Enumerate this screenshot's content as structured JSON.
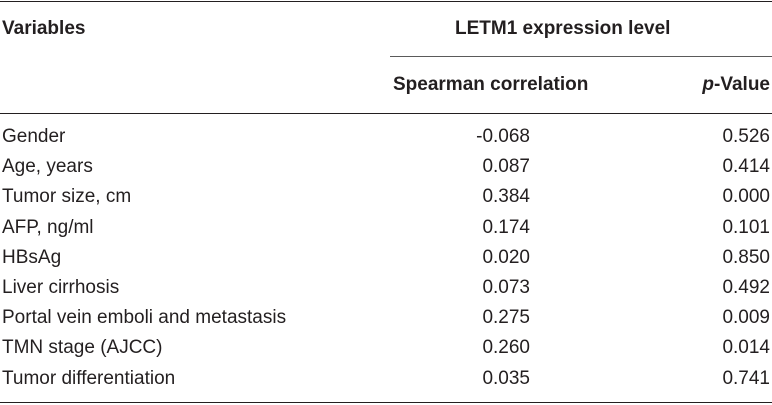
{
  "table": {
    "headers": {
      "variables": "Variables",
      "group": "LETM1 expression level",
      "spearman": "Spearman correlation",
      "pvalue_italic": "p",
      "pvalue_rest": "-Value"
    },
    "rows": [
      {
        "variable": "Gender",
        "spearman": "-0.068",
        "p": "0.526"
      },
      {
        "variable": "Age, years",
        "spearman": "0.087",
        "p": "0.414"
      },
      {
        "variable": "Tumor size, cm",
        "spearman": "0.384",
        "p": "0.000"
      },
      {
        "variable": "AFP, ng/ml",
        "spearman": "0.174",
        "p": "0.101"
      },
      {
        "variable": "HBsAg",
        "spearman": "0.020",
        "p": "0.850"
      },
      {
        "variable": "Liver cirrhosis",
        "spearman": "0.073",
        "p": "0.492"
      },
      {
        "variable": "Portal vein emboli and metastasis",
        "spearman": "0.275",
        "p": "0.009"
      },
      {
        "variable": "TMN stage (AJCC)",
        "spearman": "0.260",
        "p": "0.014"
      },
      {
        "variable": "Tumor differentiation",
        "spearman": "0.035",
        "p": "0.741"
      }
    ]
  }
}
